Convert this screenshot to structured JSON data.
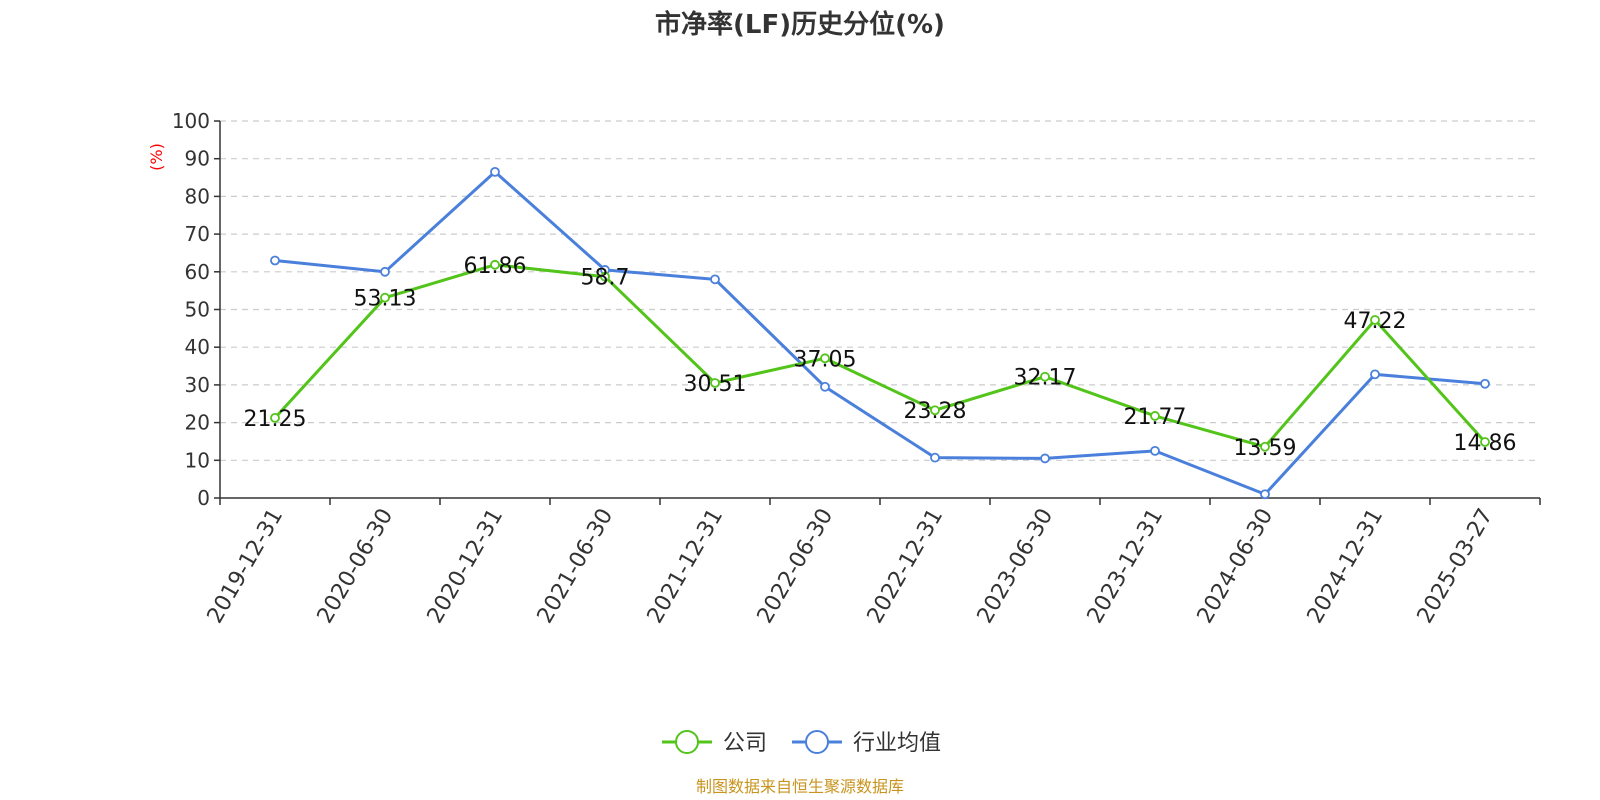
{
  "chart_data": {
    "type": "line",
    "title": "市净率(LF)历史分位(%)",
    "yunit": "(%)",
    "ylim": [
      0,
      100
    ],
    "yticks": [
      0,
      10,
      20,
      30,
      40,
      50,
      60,
      70,
      80,
      90,
      100
    ],
    "grid": true,
    "legend_position": "bottom",
    "categories": [
      "2019-12-31",
      "2020-06-30",
      "2020-12-31",
      "2021-06-30",
      "2021-12-31",
      "2022-06-30",
      "2022-12-31",
      "2023-06-30",
      "2023-12-31",
      "2024-06-30",
      "2024-12-31",
      "2025-03-27"
    ],
    "series": [
      {
        "name": "公司",
        "color": "#52c41a",
        "values": [
          21.25,
          53.13,
          61.86,
          58.7,
          30.51,
          37.05,
          23.28,
          32.17,
          21.77,
          13.59,
          47.22,
          14.86
        ],
        "labels": [
          "21.25",
          "53.13",
          "61.86",
          "58.7",
          "30.51",
          "37.05",
          "23.28",
          "32.17",
          "21.77",
          "13.59",
          "47.22",
          "14.86"
        ]
      },
      {
        "name": "行业均值",
        "color": "#4a80dc",
        "values": [
          63,
          60,
          86.5,
          60.5,
          58,
          29.5,
          10.7,
          10.5,
          12.5,
          1,
          32.8,
          30.3
        ]
      }
    ],
    "source": "制图数据来自恒生聚源数据库",
    "colors": {
      "unit": "#ff0000",
      "source": "#c8941e",
      "grid": "#cccccc",
      "axis": "#333333"
    }
  }
}
